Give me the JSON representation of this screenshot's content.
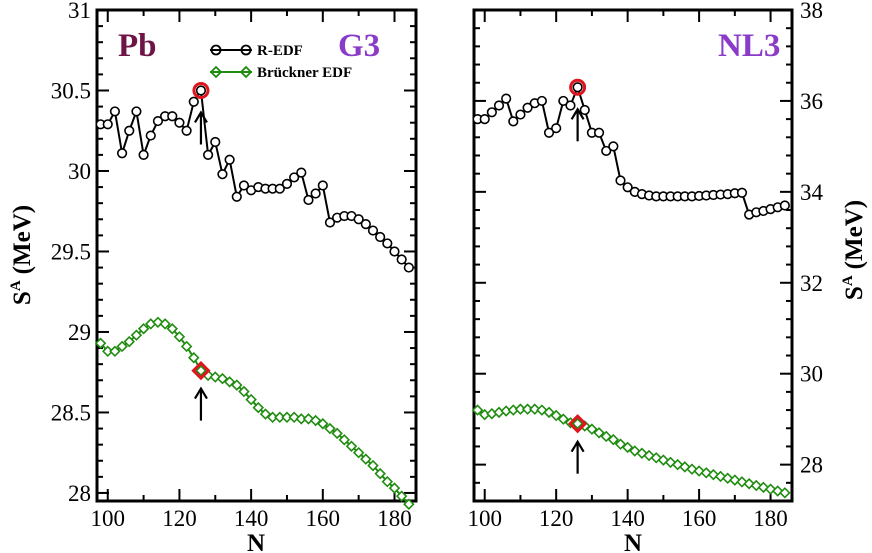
{
  "colors": {
    "black": "#000000",
    "green": "#1f8c10",
    "red": "#e0141e",
    "pb": "#6e1446",
    "model": "#8a3cc8"
  },
  "chart_data": [
    {
      "type": "line",
      "panel": "left",
      "tag": "Pb",
      "model": "G3",
      "xlabel": "N",
      "ylabel": "S",
      "ylabel_sup": "A",
      "ylabel_unit": "(MeV)",
      "xlim": [
        97,
        186
      ],
      "ylim": [
        27.95,
        31.0
      ],
      "xticks": [
        100,
        120,
        140,
        160,
        180
      ],
      "yticks": [
        28,
        28.5,
        29,
        29.5,
        30,
        30.5,
        31
      ],
      "ytick_labels": [
        "28",
        "28.5",
        "29",
        "29.5",
        "30",
        "30.5",
        "31"
      ],
      "legend": [
        "R-EDF",
        "Brückner EDF"
      ],
      "arrow_x": 126,
      "series": [
        {
          "name": "R-EDF",
          "color": "black",
          "marker": "circle",
          "x": [
            98,
            100,
            102,
            104,
            106,
            108,
            110,
            112,
            114,
            116,
            118,
            120,
            122,
            124,
            126,
            128,
            130,
            132,
            134,
            136,
            138,
            140,
            142,
            144,
            146,
            148,
            150,
            152,
            154,
            156,
            158,
            160,
            162,
            164,
            166,
            168,
            170,
            172,
            174,
            176,
            178,
            180,
            182,
            184
          ],
          "y": [
            30.29,
            30.29,
            30.37,
            30.11,
            30.25,
            30.37,
            30.1,
            30.22,
            30.31,
            30.34,
            30.34,
            30.3,
            30.25,
            30.43,
            30.5,
            30.1,
            30.18,
            29.98,
            30.07,
            29.84,
            29.91,
            29.88,
            29.9,
            29.89,
            29.89,
            29.89,
            29.92,
            29.96,
            29.99,
            29.82,
            29.86,
            29.91,
            29.68,
            29.71,
            29.72,
            29.72,
            29.7,
            29.67,
            29.63,
            29.59,
            29.55,
            29.5,
            29.45,
            29.4
          ],
          "highlight": {
            "x": 126,
            "y": 30.5
          }
        },
        {
          "name": "Brückner EDF",
          "color": "green",
          "marker": "diamond",
          "x": [
            98,
            100,
            102,
            104,
            106,
            108,
            110,
            112,
            114,
            116,
            118,
            120,
            122,
            124,
            126,
            128,
            130,
            132,
            134,
            136,
            138,
            140,
            142,
            144,
            146,
            148,
            150,
            152,
            154,
            156,
            158,
            160,
            162,
            164,
            166,
            168,
            170,
            172,
            174,
            176,
            178,
            180,
            182,
            184
          ],
          "y": [
            28.93,
            28.88,
            28.88,
            28.91,
            28.94,
            28.98,
            29.02,
            29.05,
            29.06,
            29.05,
            29.02,
            28.97,
            28.91,
            28.84,
            28.76,
            28.73,
            28.72,
            28.71,
            28.69,
            28.67,
            28.63,
            28.58,
            28.53,
            28.49,
            28.47,
            28.47,
            28.47,
            28.47,
            28.46,
            28.46,
            28.45,
            28.43,
            28.4,
            28.37,
            28.33,
            28.29,
            28.25,
            28.21,
            28.17,
            28.12,
            28.07,
            28.03,
            27.98,
            27.93
          ],
          "highlight": {
            "x": 126,
            "y": 28.76
          }
        }
      ]
    },
    {
      "type": "line",
      "panel": "right",
      "model": "NL3",
      "xlabel": "N",
      "ylabel": "S",
      "ylabel_sup": "A",
      "ylabel_unit": "(MeV)",
      "xlim": [
        97,
        186
      ],
      "ylim": [
        27.2,
        38.0
      ],
      "xticks": [
        100,
        120,
        140,
        160,
        180
      ],
      "yticks": [
        28,
        30,
        32,
        34,
        36,
        38
      ],
      "ytick_labels": [
        "28",
        "30",
        "32",
        "34",
        "36",
        "38"
      ],
      "arrow_x": 126,
      "series": [
        {
          "name": "R-EDF",
          "color": "black",
          "marker": "circle",
          "x": [
            98,
            100,
            102,
            104,
            106,
            108,
            110,
            112,
            114,
            116,
            118,
            120,
            122,
            124,
            126,
            128,
            130,
            132,
            134,
            136,
            138,
            140,
            142,
            144,
            146,
            148,
            150,
            152,
            154,
            156,
            158,
            160,
            162,
            164,
            166,
            168,
            170,
            172,
            174,
            176,
            178,
            180,
            182,
            184
          ],
          "y": [
            35.6,
            35.6,
            35.75,
            35.9,
            36.05,
            35.55,
            35.7,
            35.85,
            35.95,
            36.0,
            35.3,
            35.4,
            36.0,
            35.9,
            36.3,
            35.8,
            35.3,
            35.3,
            34.9,
            35.0,
            34.25,
            34.1,
            34.0,
            33.95,
            33.92,
            33.9,
            33.9,
            33.9,
            33.9,
            33.9,
            33.9,
            33.91,
            33.92,
            33.93,
            33.94,
            33.95,
            33.97,
            33.98,
            33.5,
            33.55,
            33.58,
            33.62,
            33.66,
            33.7
          ],
          "highlight": {
            "x": 126,
            "y": 36.3
          }
        },
        {
          "name": "Brückner EDF",
          "color": "green",
          "marker": "diamond",
          "x": [
            98,
            100,
            102,
            104,
            106,
            108,
            110,
            112,
            114,
            116,
            118,
            120,
            122,
            124,
            126,
            128,
            130,
            132,
            134,
            136,
            138,
            140,
            142,
            144,
            146,
            148,
            150,
            152,
            154,
            156,
            158,
            160,
            162,
            164,
            166,
            168,
            170,
            172,
            174,
            176,
            178,
            180,
            182,
            184
          ],
          "y": [
            29.2,
            29.1,
            29.12,
            29.15,
            29.18,
            29.2,
            29.22,
            29.22,
            29.22,
            29.2,
            29.15,
            29.08,
            29.0,
            28.92,
            28.9,
            28.85,
            28.78,
            28.7,
            28.62,
            28.55,
            28.45,
            28.38,
            28.3,
            28.25,
            28.2,
            28.15,
            28.1,
            28.05,
            28.0,
            27.95,
            27.9,
            27.86,
            27.82,
            27.78,
            27.74,
            27.7,
            27.66,
            27.62,
            27.58,
            27.54,
            27.5,
            27.46,
            27.42,
            27.38
          ],
          "highlight": {
            "x": 126,
            "y": 28.9
          }
        }
      ]
    }
  ]
}
